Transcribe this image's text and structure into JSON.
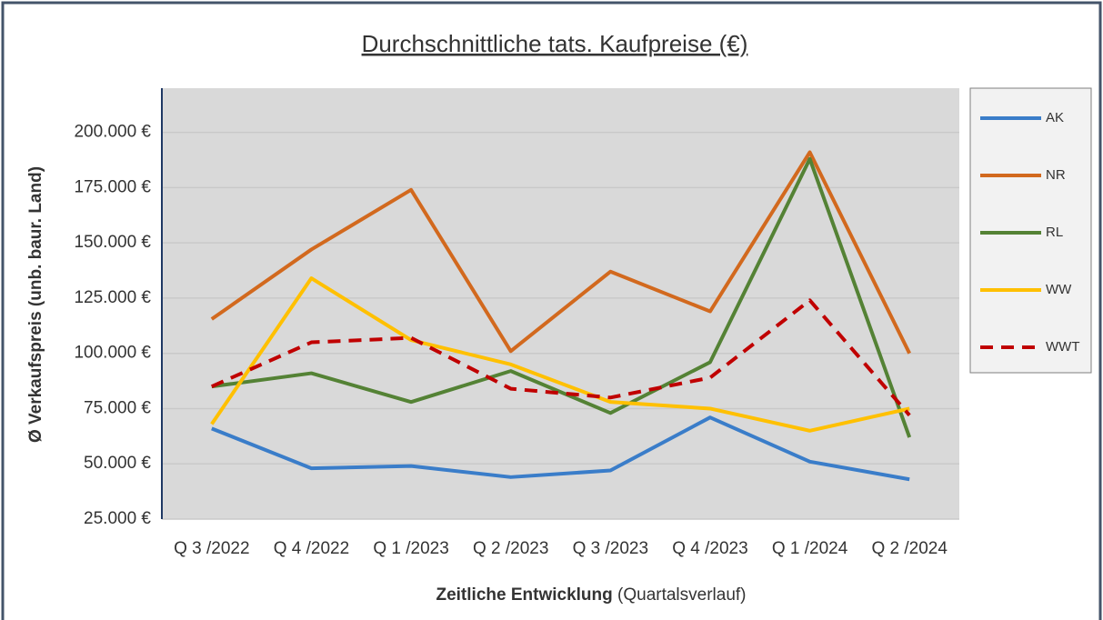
{
  "chart_data": {
    "type": "line",
    "title": "Durchschnittliche tats. Kaufpreise (€)",
    "y_label": "Ø Verkaufspreis (unb. baur. Land)",
    "x_label": "Zeitliche Entwicklung",
    "x_label_note": "(Quartalsverlauf)",
    "categories": [
      "Q 3 /2022",
      "Q 4 /2022",
      "Q 1 /2023",
      "Q 2 /2023",
      "Q 3 /2023",
      "Q 4 /2023",
      "Q 1 /2024",
      "Q 2 /2024"
    ],
    "ylim": [
      25000,
      220000
    ],
    "yticks": [
      {
        "value": 25000,
        "label": "25.000 €"
      },
      {
        "value": 50000,
        "label": "50.000 €"
      },
      {
        "value": 75000,
        "label": "75.000 €"
      },
      {
        "value": 100000,
        "label": "100.000 €"
      },
      {
        "value": 125000,
        "label": "125.000 €"
      },
      {
        "value": 150000,
        "label": "150.000 €"
      },
      {
        "value": 175000,
        "label": "175.000 €"
      },
      {
        "value": 200000,
        "label": "200.000 €"
      }
    ],
    "grid": true,
    "legend": "right",
    "series": [
      {
        "name": "AK",
        "color": "#3a7dc9",
        "values": [
          66000,
          48000,
          49000,
          44000,
          47000,
          71000,
          51000,
          43000
        ]
      },
      {
        "name": "NR",
        "color": "#d2691e",
        "values": [
          115500,
          147000,
          174000,
          101000,
          137000,
          119000,
          191000,
          100000
        ]
      },
      {
        "name": "RL",
        "color": "#548235",
        "values": [
          85000,
          91000,
          78000,
          92000,
          73000,
          96000,
          188000,
          62000
        ]
      },
      {
        "name": "WW",
        "color": "#ffc000",
        "values": [
          68000,
          134000,
          106000,
          95000,
          78000,
          75000,
          65000,
          75000
        ]
      },
      {
        "name": "WWT",
        "color": "#c00000",
        "dashed": true,
        "values": [
          85000,
          105000,
          107000,
          84000,
          80000,
          89000,
          124000,
          72000
        ]
      }
    ]
  }
}
